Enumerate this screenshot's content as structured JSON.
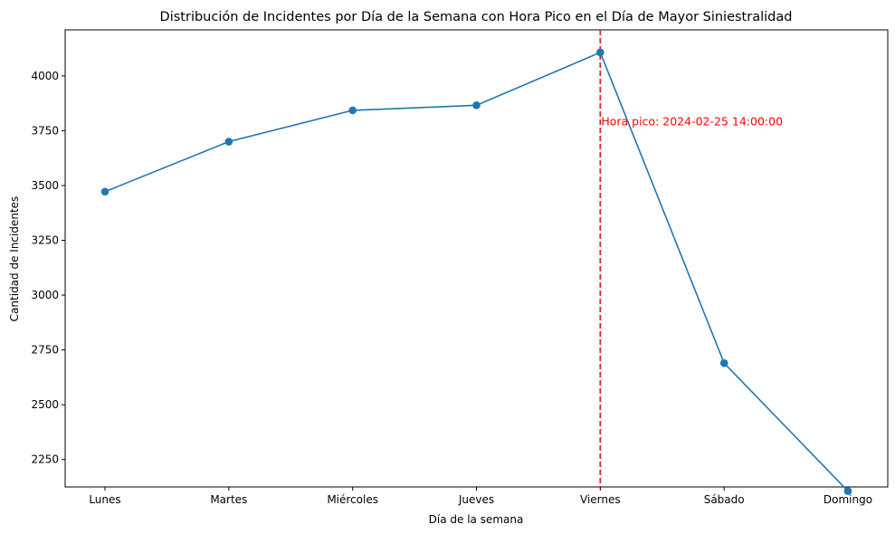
{
  "chart_data": {
    "type": "line",
    "title": "Distribución de Incidentes por Día de la Semana con Hora Pico en el Día de Mayor Siniestralidad",
    "xlabel": "Día de la semana",
    "ylabel": "Cantidad de Incidentes",
    "categories": [
      "Lunes",
      "Martes",
      "Miércoles",
      "Jueves",
      "Viernes",
      "Sábado",
      "Domingo"
    ],
    "series": [
      {
        "values": [
          3472,
          3700,
          3843,
          3866,
          4107,
          2690,
          2106
        ],
        "color": "#1f77b4",
        "marker": "circle"
      }
    ],
    "ylim": [
      2125,
      4210
    ],
    "yticks": [
      2250,
      2500,
      2750,
      3000,
      3250,
      3500,
      3750,
      4000
    ],
    "ytick_labels": [
      "2250",
      "2500",
      "2750",
      "3000",
      "3250",
      "3500",
      "3750",
      "4000"
    ],
    "grid": false,
    "vline": {
      "category": "Viernes",
      "color": "#d62728",
      "style": "dashed"
    },
    "annotation": {
      "text": "Hora pico: 2024-02-25 14:00:00",
      "category": "Viernes",
      "y": 3790,
      "color": "#ff0000"
    }
  }
}
